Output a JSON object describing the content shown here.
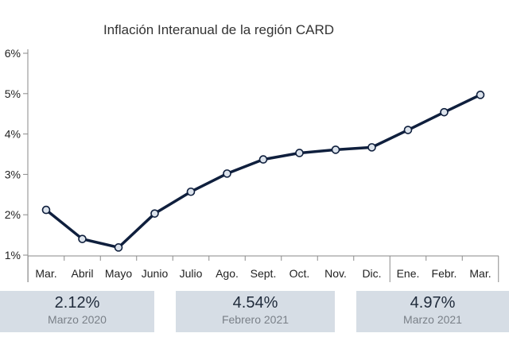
{
  "chart_data": {
    "type": "line",
    "title": "Inflación Interanual de la región CARD",
    "categories": [
      "Mar.",
      "Abril",
      "Mayo",
      "Junio",
      "Julio",
      "Ago.",
      "Sept.",
      "Oct.",
      "Nov.",
      "Dic.",
      "Ene.",
      "Febr.",
      "Mar."
    ],
    "series": [
      {
        "values": [
          2.12,
          1.4,
          1.19,
          2.03,
          2.57,
          3.02,
          3.37,
          3.53,
          3.61,
          3.67,
          4.1,
          4.54,
          4.97
        ]
      }
    ],
    "y_ticks": [
      "1%",
      "2%",
      "3%",
      "4%",
      "5%",
      "6%"
    ],
    "ylim": [
      1,
      6
    ],
    "grid": false,
    "line_color": "#0f1f3d",
    "marker_fill": "#dce3ec"
  },
  "summary": [
    {
      "value": "2.12%",
      "label": "Marzo 2020"
    },
    {
      "value": "4.54%",
      "label": "Febrero 2021"
    },
    {
      "value": "4.97%",
      "label": "Marzo 2021"
    }
  ]
}
